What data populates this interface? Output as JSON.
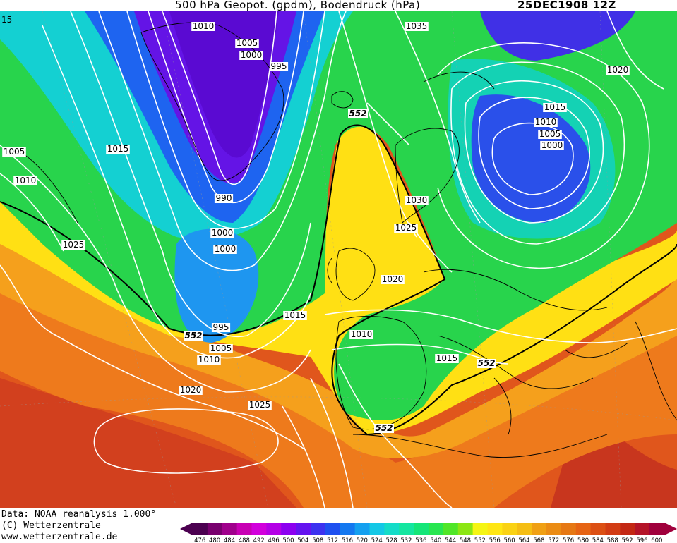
{
  "header": {
    "title": "500 hPa Geopot. (gpdm), Bodendruck (hPa)",
    "datestamp": "25DEC1908 12Z"
  },
  "footer": {
    "data_line": "Data: NOAA reanalysis 1.000°",
    "copyright_line": "(C) Wetterzentrale",
    "url_line": "www.wetterzentrale.de"
  },
  "corner_label": "15",
  "colors": {
    "ocean_deep_purple": "#6a0fc8",
    "low_blue": "#1e3ee6",
    "mid_cyan": "#1ad2d2",
    "green": "#2ad24a",
    "yellow": "#ffe600",
    "orange": "#ef8f1e",
    "red": "#d2461e",
    "isobar": "#ffffff",
    "coast": "#000000"
  },
  "legend": {
    "values": [
      "476",
      "480",
      "484",
      "488",
      "492",
      "496",
      "500",
      "504",
      "508",
      "512",
      "516",
      "520",
      "524",
      "528",
      "532",
      "536",
      "540",
      "544",
      "548",
      "552",
      "556",
      "560",
      "564",
      "568",
      "572",
      "576",
      "580",
      "584",
      "588",
      "592",
      "596",
      "600"
    ],
    "colors": [
      "#4b0050",
      "#78006e",
      "#a0008c",
      "#c800b4",
      "#d200dc",
      "#b400e6",
      "#8c00f0",
      "#6414f0",
      "#3c32f0",
      "#1e50f0",
      "#1478f0",
      "#14a0f0",
      "#14c8e6",
      "#14dcc8",
      "#14e6a0",
      "#14e678",
      "#28e650",
      "#50e628",
      "#8ce614",
      "#f5f514",
      "#ffe614",
      "#fad214",
      "#f5be14",
      "#f0a014",
      "#eb8c14",
      "#e67814",
      "#e66414",
      "#dc5014",
      "#d23c14",
      "#c32814",
      "#b41428",
      "#a0003c"
    ]
  },
  "isobar_labels": [
    {
      "text": "1010"
    },
    {
      "text": "1005"
    },
    {
      "text": "1000"
    },
    {
      "text": "995"
    },
    {
      "text": "1035"
    },
    {
      "text": "1020"
    },
    {
      "text": "1015"
    },
    {
      "text": "1010"
    },
    {
      "text": "1005"
    },
    {
      "text": "1000"
    },
    {
      "text": "1005"
    },
    {
      "text": "1015"
    },
    {
      "text": "1010"
    },
    {
      "text": "990"
    },
    {
      "text": "1030"
    },
    {
      "text": "1025"
    },
    {
      "text": "1000"
    },
    {
      "text": "1000"
    },
    {
      "text": "1025"
    },
    {
      "text": "1020"
    },
    {
      "text": "1015"
    },
    {
      "text": "995"
    },
    {
      "text": "1010"
    },
    {
      "text": "1005"
    },
    {
      "text": "1010"
    },
    {
      "text": "1015"
    },
    {
      "text": "1020"
    },
    {
      "text": "1025"
    }
  ],
  "height_labels": [
    {
      "text": "552"
    },
    {
      "text": "552"
    },
    {
      "text": "552"
    },
    {
      "text": "552"
    }
  ]
}
